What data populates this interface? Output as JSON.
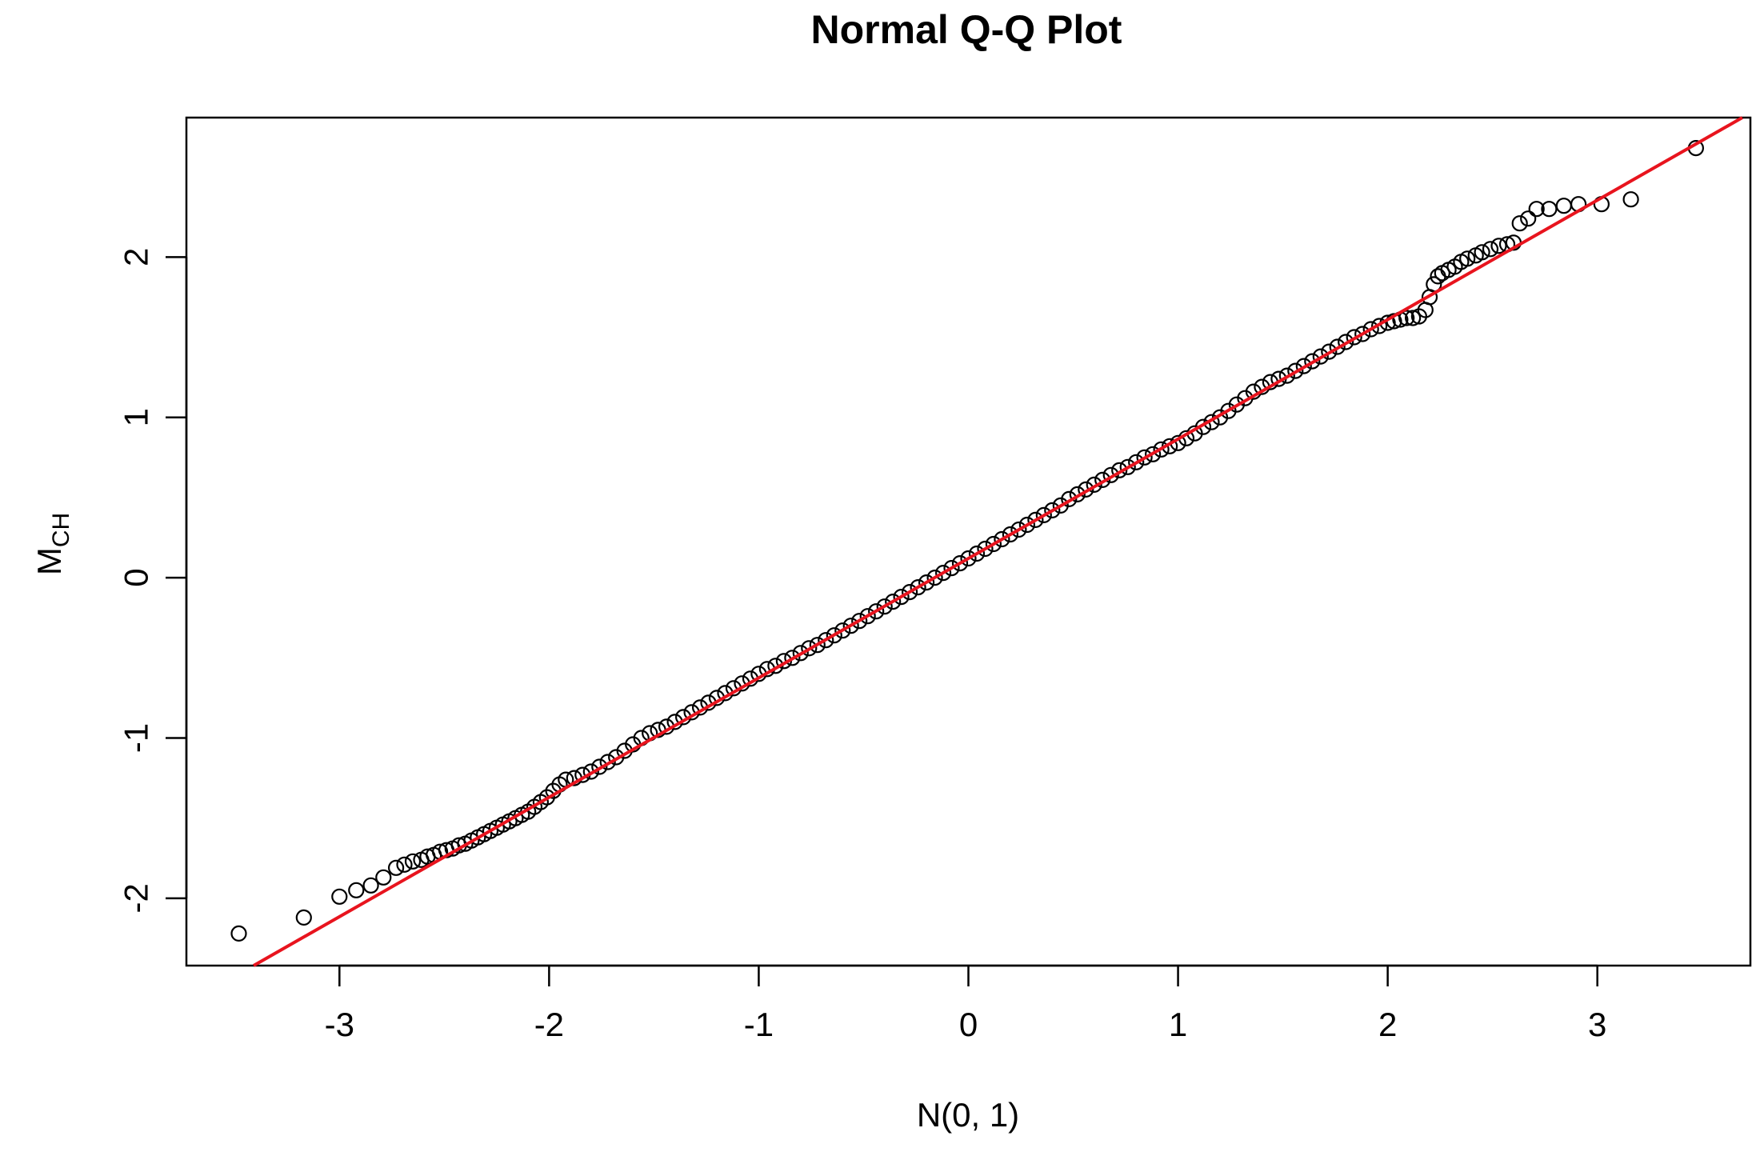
{
  "chart_data": {
    "type": "scatter",
    "title": "Normal Q-Q Plot",
    "xlabel": "N(0, 1)",
    "ylabel_main": "M",
    "ylabel_sub": "CH",
    "xlim": [
      -3.73,
      3.73
    ],
    "ylim": [
      -2.42,
      2.87
    ],
    "x_ticks": [
      -3,
      -2,
      -1,
      0,
      1,
      2,
      3
    ],
    "x_tick_labels": [
      "-3",
      "-2",
      "-1",
      "0",
      "1",
      "2",
      "3"
    ],
    "y_ticks": [
      -2,
      -1,
      0,
      1,
      2
    ],
    "y_tick_labels": [
      "-2",
      "-1",
      "0",
      "1",
      "2"
    ],
    "grid": false,
    "legend": "none",
    "point_style": "open-circle",
    "point_color": "#000000",
    "reference_line": {
      "color": "#e8141e",
      "intercept": 0.12,
      "slope": 0.745
    },
    "points": [
      [
        -3.48,
        -2.22
      ],
      [
        -3.17,
        -2.12
      ],
      [
        -3.0,
        -1.99
      ],
      [
        -2.92,
        -1.95
      ],
      [
        -2.85,
        -1.92
      ],
      [
        -2.79,
        -1.87
      ],
      [
        -2.73,
        -1.81
      ],
      [
        -2.69,
        -1.79
      ],
      [
        -2.65,
        -1.77
      ],
      [
        -2.61,
        -1.76
      ],
      [
        -2.58,
        -1.74
      ],
      [
        -2.55,
        -1.73
      ],
      [
        -2.52,
        -1.71
      ],
      [
        -2.49,
        -1.7
      ],
      [
        -2.46,
        -1.69
      ],
      [
        -2.43,
        -1.67
      ],
      [
        -2.4,
        -1.66
      ],
      [
        -2.37,
        -1.64
      ],
      [
        -2.34,
        -1.62
      ],
      [
        -2.31,
        -1.6
      ],
      [
        -2.28,
        -1.58
      ],
      [
        -2.25,
        -1.56
      ],
      [
        -2.22,
        -1.54
      ],
      [
        -2.19,
        -1.52
      ],
      [
        -2.16,
        -1.5
      ],
      [
        -2.13,
        -1.48
      ],
      [
        -2.1,
        -1.46
      ],
      [
        -2.07,
        -1.43
      ],
      [
        -2.04,
        -1.4
      ],
      [
        -2.01,
        -1.37
      ],
      [
        -1.98,
        -1.33
      ],
      [
        -1.95,
        -1.29
      ],
      [
        -1.92,
        -1.26
      ],
      [
        -1.88,
        -1.25
      ],
      [
        -1.84,
        -1.23
      ],
      [
        -1.8,
        -1.21
      ],
      [
        -1.76,
        -1.18
      ],
      [
        -1.72,
        -1.15
      ],
      [
        -1.68,
        -1.12
      ],
      [
        -1.64,
        -1.08
      ],
      [
        -1.6,
        -1.04
      ],
      [
        -1.56,
        -1.0
      ],
      [
        -1.52,
        -0.97
      ],
      [
        -1.48,
        -0.95
      ],
      [
        -1.44,
        -0.93
      ],
      [
        -1.4,
        -0.9
      ],
      [
        -1.36,
        -0.87
      ],
      [
        -1.32,
        -0.84
      ],
      [
        -1.28,
        -0.81
      ],
      [
        -1.24,
        -0.78
      ],
      [
        -1.2,
        -0.75
      ],
      [
        -1.16,
        -0.72
      ],
      [
        -1.12,
        -0.69
      ],
      [
        -1.08,
        -0.66
      ],
      [
        -1.04,
        -0.63
      ],
      [
        -1.0,
        -0.6
      ],
      [
        -0.96,
        -0.57
      ],
      [
        -0.92,
        -0.55
      ],
      [
        -0.88,
        -0.52
      ],
      [
        -0.84,
        -0.5
      ],
      [
        -0.8,
        -0.47
      ],
      [
        -0.76,
        -0.44
      ],
      [
        -0.72,
        -0.42
      ],
      [
        -0.68,
        -0.39
      ],
      [
        -0.64,
        -0.36
      ],
      [
        -0.6,
        -0.33
      ],
      [
        -0.56,
        -0.3
      ],
      [
        -0.52,
        -0.27
      ],
      [
        -0.48,
        -0.24
      ],
      [
        -0.44,
        -0.21
      ],
      [
        -0.4,
        -0.18
      ],
      [
        -0.36,
        -0.15
      ],
      [
        -0.32,
        -0.12
      ],
      [
        -0.28,
        -0.09
      ],
      [
        -0.24,
        -0.06
      ],
      [
        -0.2,
        -0.03
      ],
      [
        -0.16,
        0.0
      ],
      [
        -0.12,
        0.03
      ],
      [
        -0.08,
        0.06
      ],
      [
        -0.04,
        0.09
      ],
      [
        0.0,
        0.12
      ],
      [
        0.04,
        0.15
      ],
      [
        0.08,
        0.18
      ],
      [
        0.12,
        0.21
      ],
      [
        0.16,
        0.24
      ],
      [
        0.2,
        0.27
      ],
      [
        0.24,
        0.3
      ],
      [
        0.28,
        0.33
      ],
      [
        0.32,
        0.36
      ],
      [
        0.36,
        0.39
      ],
      [
        0.4,
        0.42
      ],
      [
        0.44,
        0.45
      ],
      [
        0.48,
        0.49
      ],
      [
        0.52,
        0.52
      ],
      [
        0.56,
        0.55
      ],
      [
        0.6,
        0.58
      ],
      [
        0.64,
        0.61
      ],
      [
        0.68,
        0.64
      ],
      [
        0.72,
        0.67
      ],
      [
        0.76,
        0.69
      ],
      [
        0.8,
        0.72
      ],
      [
        0.84,
        0.75
      ],
      [
        0.88,
        0.77
      ],
      [
        0.92,
        0.8
      ],
      [
        0.96,
        0.82
      ],
      [
        1.0,
        0.84
      ],
      [
        1.04,
        0.87
      ],
      [
        1.08,
        0.9
      ],
      [
        1.12,
        0.94
      ],
      [
        1.16,
        0.97
      ],
      [
        1.2,
        1.0
      ],
      [
        1.24,
        1.04
      ],
      [
        1.28,
        1.08
      ],
      [
        1.32,
        1.12
      ],
      [
        1.36,
        1.16
      ],
      [
        1.4,
        1.19
      ],
      [
        1.44,
        1.22
      ],
      [
        1.48,
        1.24
      ],
      [
        1.52,
        1.26
      ],
      [
        1.56,
        1.29
      ],
      [
        1.6,
        1.32
      ],
      [
        1.64,
        1.35
      ],
      [
        1.68,
        1.38
      ],
      [
        1.72,
        1.41
      ],
      [
        1.76,
        1.44
      ],
      [
        1.8,
        1.47
      ],
      [
        1.84,
        1.5
      ],
      [
        1.88,
        1.52
      ],
      [
        1.92,
        1.55
      ],
      [
        1.96,
        1.57
      ],
      [
        2.0,
        1.59
      ],
      [
        2.03,
        1.6
      ],
      [
        2.06,
        1.61
      ],
      [
        2.09,
        1.62
      ],
      [
        2.12,
        1.62
      ],
      [
        2.15,
        1.63
      ],
      [
        2.18,
        1.67
      ],
      [
        2.2,
        1.75
      ],
      [
        2.22,
        1.83
      ],
      [
        2.24,
        1.88
      ],
      [
        2.26,
        1.9
      ],
      [
        2.29,
        1.92
      ],
      [
        2.32,
        1.94
      ],
      [
        2.35,
        1.97
      ],
      [
        2.38,
        1.99
      ],
      [
        2.42,
        2.01
      ],
      [
        2.45,
        2.03
      ],
      [
        2.49,
        2.05
      ],
      [
        2.53,
        2.07
      ],
      [
        2.57,
        2.08
      ],
      [
        2.6,
        2.09
      ],
      [
        2.63,
        2.21
      ],
      [
        2.67,
        2.24
      ],
      [
        2.71,
        2.3
      ],
      [
        2.77,
        2.3
      ],
      [
        2.84,
        2.32
      ],
      [
        2.91,
        2.33
      ],
      [
        3.02,
        2.33
      ],
      [
        3.16,
        2.36
      ],
      [
        3.47,
        2.68
      ]
    ]
  }
}
